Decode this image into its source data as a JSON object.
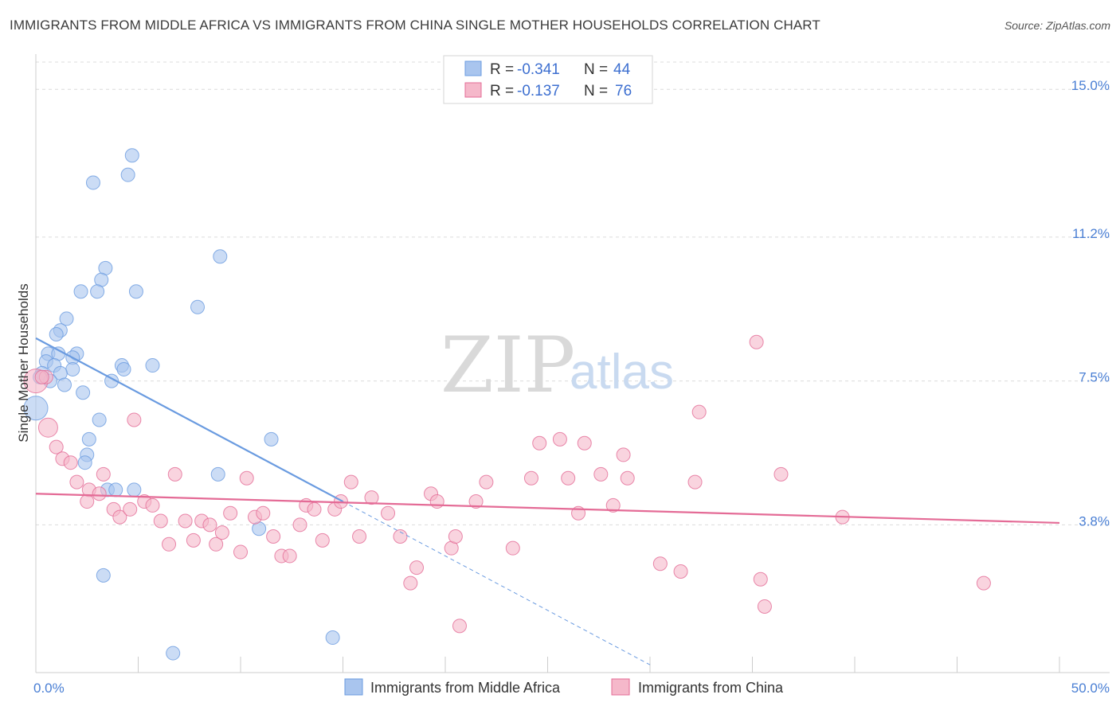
{
  "title": "IMMIGRANTS FROM MIDDLE AFRICA VS IMMIGRANTS FROM CHINA SINGLE MOTHER HOUSEHOLDS CORRELATION CHART",
  "source": "Source: ZipAtlas.com",
  "watermark": {
    "zip": "ZIP",
    "atlas": "atlas"
  },
  "legend": {
    "rows": [
      {
        "r_label": "R =",
        "r_value": "-0.341",
        "n_label": "N =",
        "n_value": "44",
        "color": "#a9c5ee"
      },
      {
        "r_label": "R =",
        "r_value": "-0.137",
        "n_label": "N =",
        "n_value": "76",
        "color": "#f5b8ca"
      }
    ]
  },
  "bottom_legend": [
    {
      "label": "Immigrants from Middle Africa",
      "color": "#a9c5ee"
    },
    {
      "label": "Immigrants from China",
      "color": "#f5b8ca"
    }
  ],
  "chart_data": {
    "type": "scatter",
    "title": "IMMIGRANTS FROM MIDDLE AFRICA VS IMMIGRANTS FROM CHINA SINGLE MOTHER HOUSEHOLDS CORRELATION CHART",
    "xlabel": "",
    "ylabel": "Single Mother Households",
    "xlim": [
      0,
      50
    ],
    "ylim": [
      0,
      15.7
    ],
    "x_tick_labels": [
      "0.0%",
      "50.0%"
    ],
    "y_ticks": [
      3.8,
      7.5,
      11.2,
      15.0
    ],
    "y_tick_labels": [
      "3.8%",
      "7.5%",
      "11.2%",
      "15.0%"
    ],
    "grid": true,
    "legend_position": "top-center",
    "series": [
      {
        "name": "Immigrants from Middle Africa",
        "color": "#6a9be0",
        "fill": "#a9c5ee",
        "points": [
          [
            4.7,
            13.3
          ],
          [
            4.5,
            12.8
          ],
          [
            2.8,
            12.6
          ],
          [
            9.0,
            10.7
          ],
          [
            3.4,
            10.4
          ],
          [
            3.2,
            10.1
          ],
          [
            2.2,
            9.8
          ],
          [
            3.0,
            9.8
          ],
          [
            4.9,
            9.8
          ],
          [
            7.9,
            9.4
          ],
          [
            1.5,
            9.1
          ],
          [
            1.2,
            8.8
          ],
          [
            1.0,
            8.7
          ],
          [
            0.6,
            8.2
          ],
          [
            1.1,
            8.2
          ],
          [
            2.0,
            8.2
          ],
          [
            1.8,
            8.1
          ],
          [
            0.5,
            8.0
          ],
          [
            0.9,
            7.9
          ],
          [
            4.2,
            7.9
          ],
          [
            5.7,
            7.9
          ],
          [
            0.3,
            7.7
          ],
          [
            1.8,
            7.8
          ],
          [
            4.3,
            7.8
          ],
          [
            1.2,
            7.7
          ],
          [
            0.2,
            7.6
          ],
          [
            0.7,
            7.5
          ],
          [
            3.7,
            7.5
          ],
          [
            1.4,
            7.4
          ],
          [
            2.3,
            7.2
          ],
          [
            0.0,
            6.8
          ],
          [
            3.1,
            6.5
          ],
          [
            11.5,
            6.0
          ],
          [
            2.6,
            6.0
          ],
          [
            2.5,
            5.6
          ],
          [
            2.4,
            5.4
          ],
          [
            8.9,
            5.1
          ],
          [
            3.5,
            4.7
          ],
          [
            3.9,
            4.7
          ],
          [
            4.8,
            4.7
          ],
          [
            10.9,
            3.7
          ],
          [
            3.3,
            2.5
          ],
          [
            14.5,
            0.9
          ],
          [
            6.7,
            0.5
          ]
        ],
        "sizes": {
          "0.0,6.8": "large"
        },
        "trend": {
          "x1": 0.0,
          "y1": 8.6,
          "x2": 15.0,
          "y2": 4.4,
          "dashed_to_x": 30.0
        }
      },
      {
        "name": "Immigrants from China",
        "color": "#e46b96",
        "fill": "#f5b8ca",
        "points": [
          [
            0.0,
            7.5
          ],
          [
            0.5,
            7.6
          ],
          [
            0.6,
            6.3
          ],
          [
            1.0,
            5.8
          ],
          [
            1.3,
            5.5
          ],
          [
            1.7,
            5.4
          ],
          [
            2.0,
            4.9
          ],
          [
            2.6,
            4.7
          ],
          [
            3.3,
            5.1
          ],
          [
            4.8,
            6.5
          ],
          [
            2.5,
            4.4
          ],
          [
            3.1,
            4.6
          ],
          [
            3.8,
            4.2
          ],
          [
            4.1,
            4.0
          ],
          [
            4.6,
            4.2
          ],
          [
            5.3,
            4.4
          ],
          [
            5.7,
            4.3
          ],
          [
            6.1,
            3.9
          ],
          [
            6.5,
            3.3
          ],
          [
            6.8,
            5.1
          ],
          [
            7.3,
            3.9
          ],
          [
            7.7,
            3.4
          ],
          [
            8.1,
            3.9
          ],
          [
            8.5,
            3.8
          ],
          [
            8.8,
            3.3
          ],
          [
            9.1,
            3.6
          ],
          [
            9.5,
            4.1
          ],
          [
            10.0,
            3.1
          ],
          [
            10.3,
            5.0
          ],
          [
            10.7,
            4.0
          ],
          [
            11.1,
            4.1
          ],
          [
            11.6,
            3.5
          ],
          [
            12.0,
            3.0
          ],
          [
            12.4,
            3.0
          ],
          [
            12.9,
            3.8
          ],
          [
            13.2,
            4.3
          ],
          [
            13.6,
            4.2
          ],
          [
            14.0,
            3.4
          ],
          [
            14.6,
            4.2
          ],
          [
            14.9,
            4.4
          ],
          [
            15.4,
            4.9
          ],
          [
            15.8,
            3.5
          ],
          [
            16.4,
            4.5
          ],
          [
            17.2,
            4.1
          ],
          [
            17.8,
            3.5
          ],
          [
            18.3,
            2.3
          ],
          [
            18.6,
            2.7
          ],
          [
            19.3,
            4.6
          ],
          [
            19.6,
            4.4
          ],
          [
            20.7,
            1.2
          ],
          [
            20.3,
            3.2
          ],
          [
            20.5,
            3.5
          ],
          [
            21.5,
            4.4
          ],
          [
            22.0,
            4.9
          ],
          [
            23.3,
            3.2
          ],
          [
            24.2,
            5.0
          ],
          [
            24.6,
            5.9
          ],
          [
            25.6,
            6.0
          ],
          [
            26.0,
            5.0
          ],
          [
            26.5,
            4.1
          ],
          [
            26.8,
            5.9
          ],
          [
            27.6,
            5.1
          ],
          [
            28.2,
            4.3
          ],
          [
            28.7,
            5.6
          ],
          [
            28.9,
            5.0
          ],
          [
            30.5,
            2.8
          ],
          [
            31.5,
            2.6
          ],
          [
            32.2,
            4.9
          ],
          [
            32.4,
            6.7
          ],
          [
            35.2,
            8.5
          ],
          [
            35.6,
            1.7
          ],
          [
            35.4,
            2.4
          ],
          [
            36.4,
            5.1
          ],
          [
            39.4,
            4.0
          ],
          [
            46.3,
            2.3
          ],
          [
            0.3,
            7.6
          ]
        ],
        "sizes": {
          "0.0,7.5": "large",
          "0.6,6.3": "medium"
        },
        "trend": {
          "x1": 0.0,
          "y1": 4.6,
          "x2": 50.0,
          "y2": 3.85
        }
      }
    ]
  },
  "axes": {
    "x_tick_left": "0.0%",
    "x_tick_right": "50.0%",
    "ylabel": "Single Mother Households"
  }
}
